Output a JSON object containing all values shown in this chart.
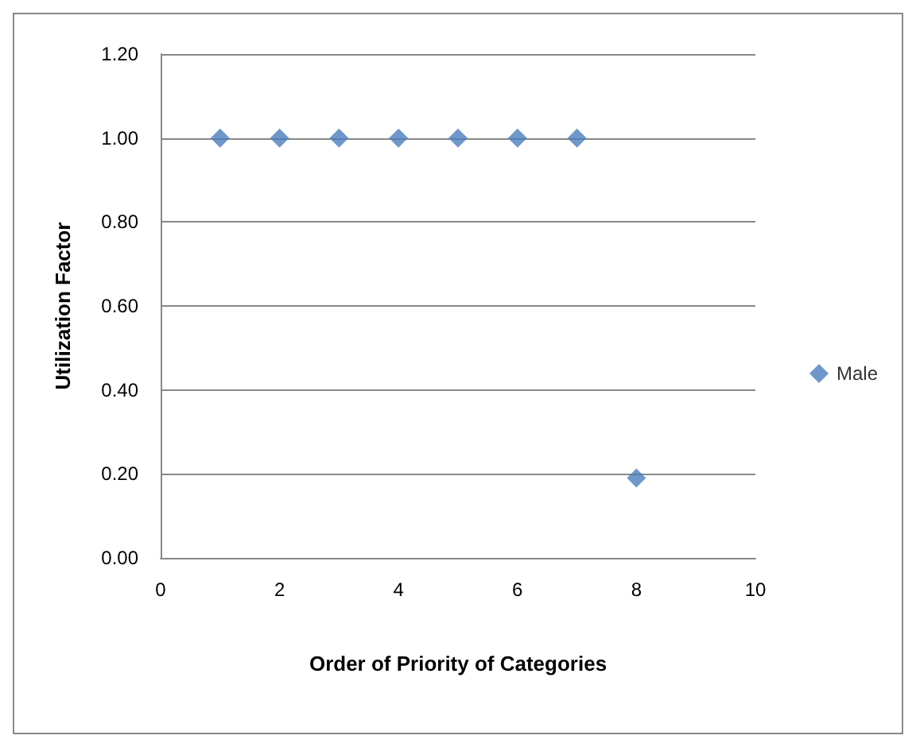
{
  "chart_data": {
    "type": "scatter",
    "xlabel": "Order of Priority of Categories",
    "ylabel": "Utilization Factor",
    "x": [
      1,
      2,
      3,
      4,
      5,
      6,
      7,
      8
    ],
    "series": [
      {
        "name": "Male",
        "color": "#4a7ebb",
        "values": [
          1,
          1,
          1,
          1,
          1,
          1,
          1,
          0.19
        ]
      }
    ],
    "xlim": [
      0,
      10
    ],
    "xticks": [
      0,
      2,
      4,
      6,
      8,
      10
    ],
    "ylim": [
      0,
      1.2
    ],
    "yticks": [
      {
        "value": 0,
        "label": "0.00"
      },
      {
        "value": 0.2,
        "label": "0.20"
      },
      {
        "value": 0.4,
        "label": "0.40"
      },
      {
        "value": 0.6,
        "label": "0.60"
      },
      {
        "value": 0.8,
        "label": "0.80"
      },
      {
        "value": 1,
        "label": "1.00"
      },
      {
        "value": 1.2,
        "label": "1.20"
      }
    ],
    "grid": "y",
    "legend": "right",
    "marker": "diamond"
  }
}
